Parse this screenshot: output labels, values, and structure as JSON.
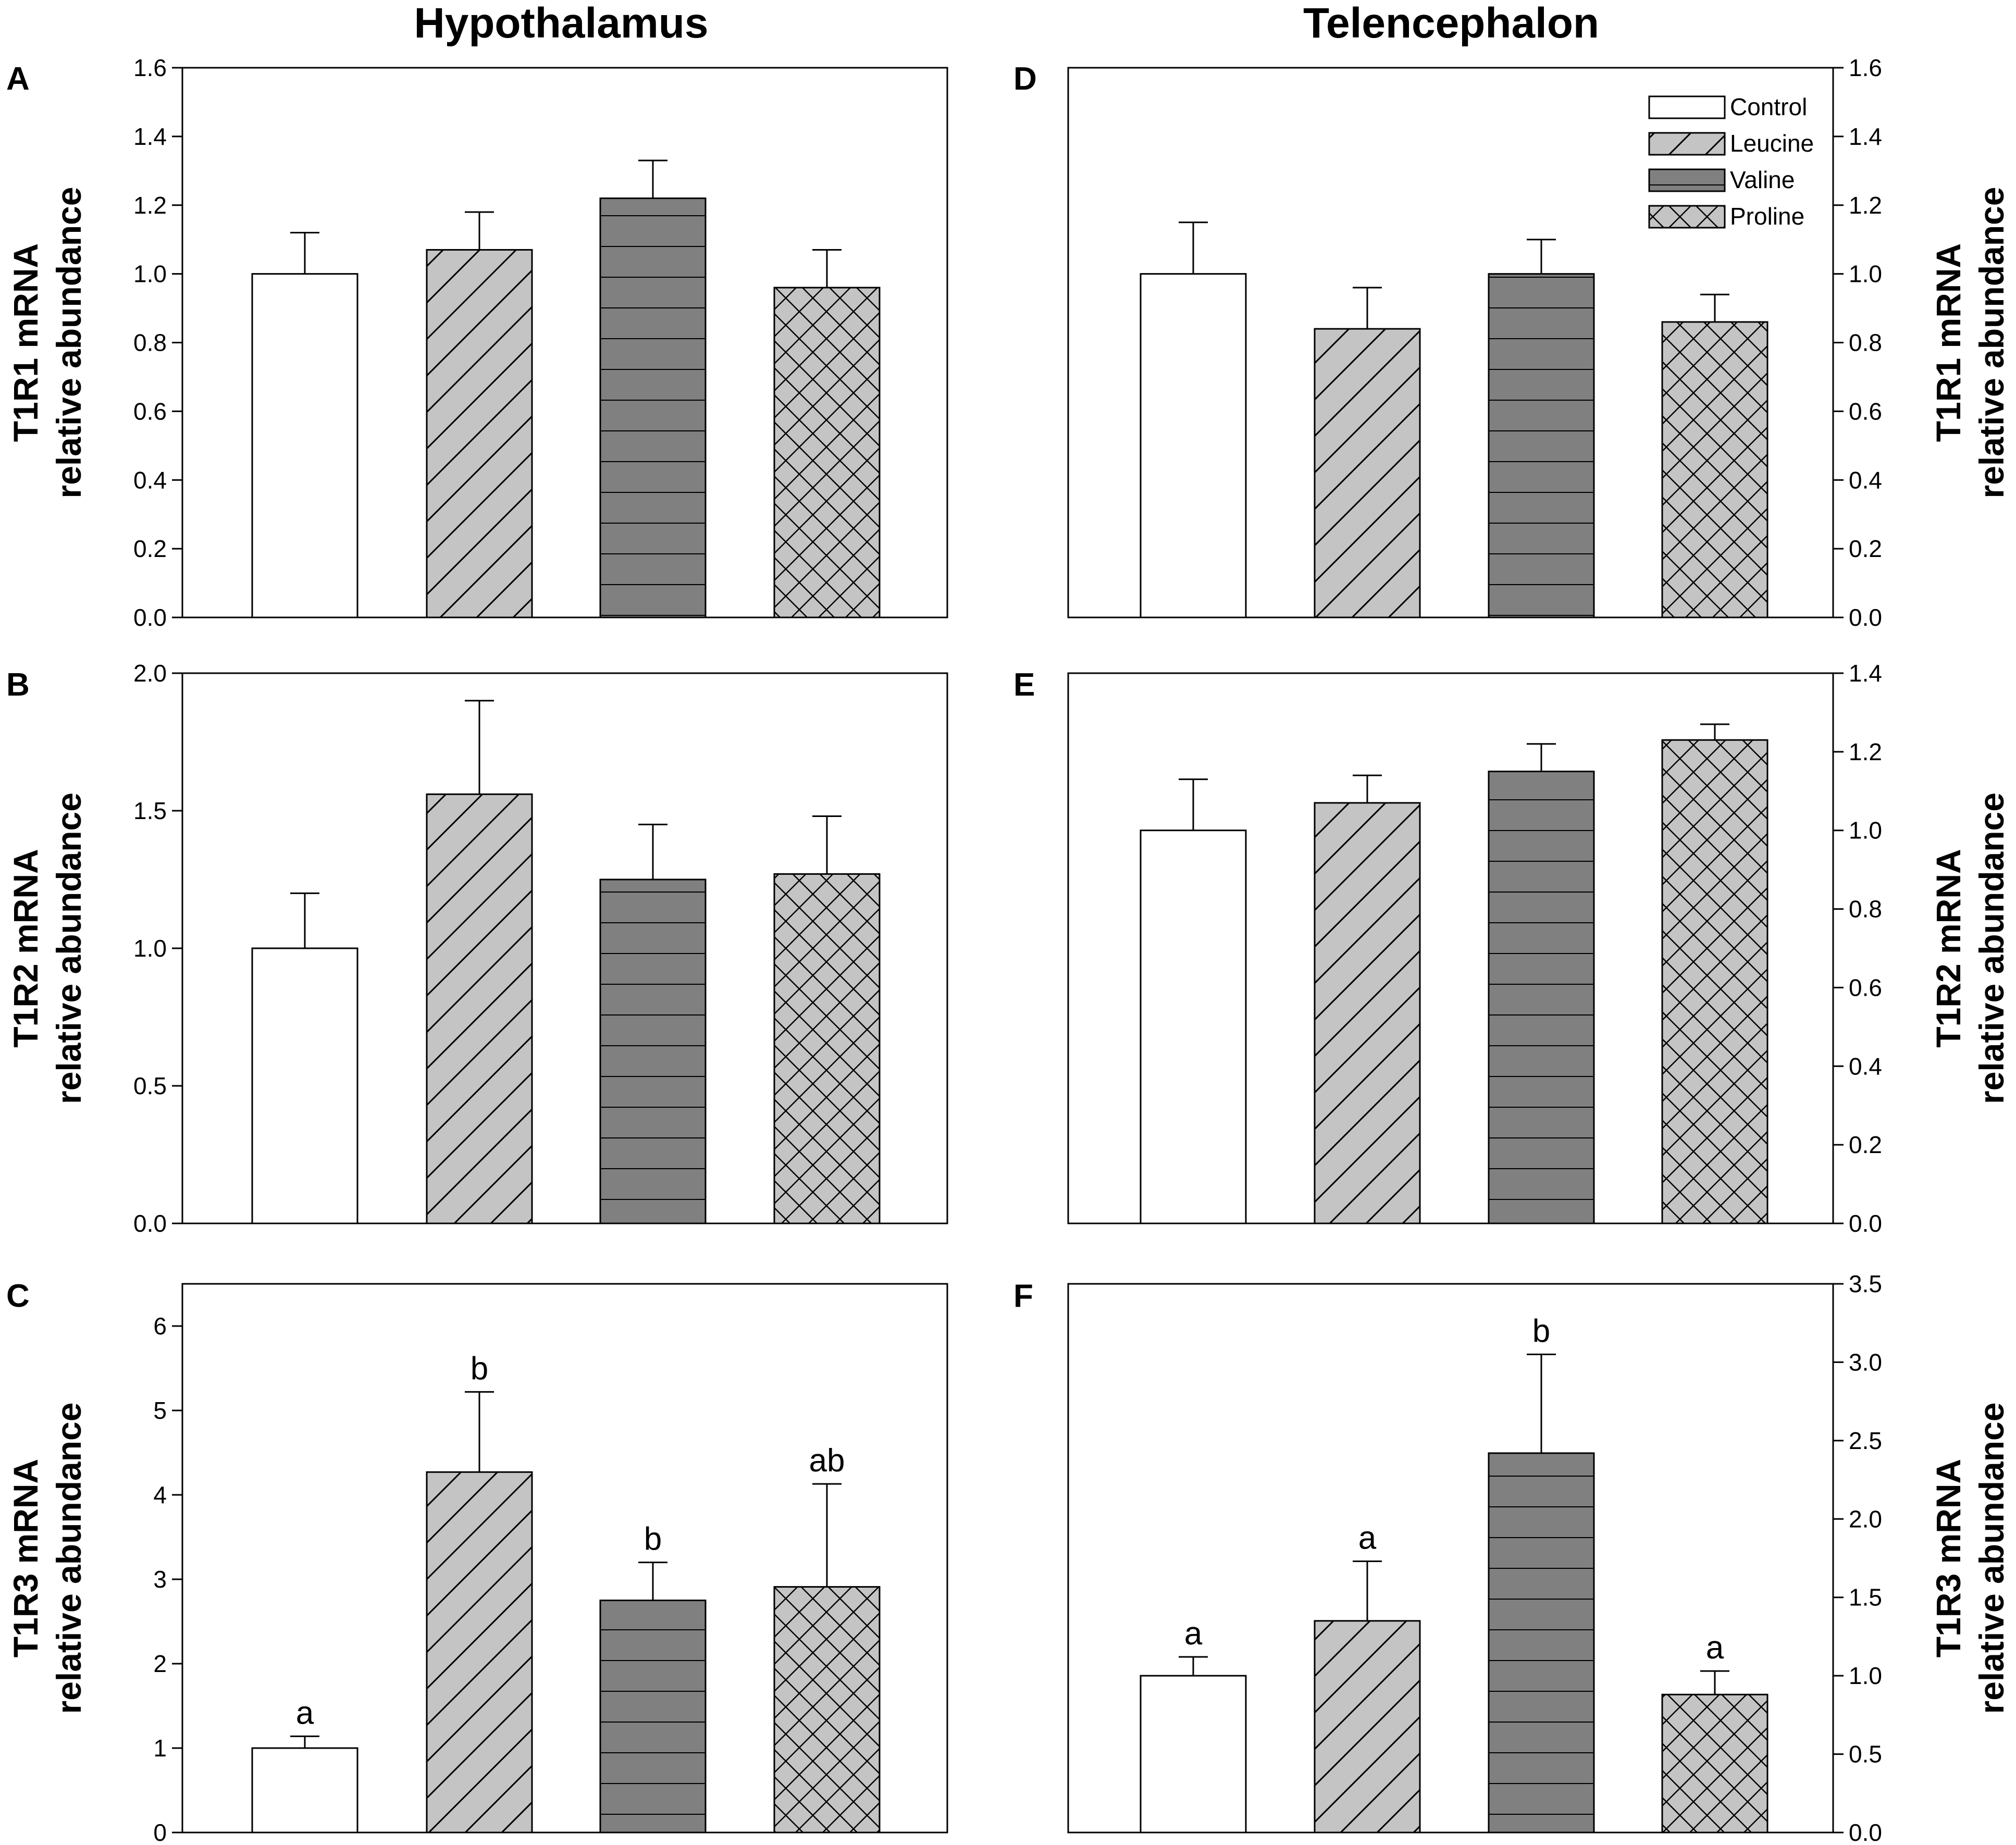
{
  "figure": {
    "column_titles": [
      "Hypothalamus",
      "Telencephalon"
    ]
  },
  "chart_data": [
    {
      "panel": "A",
      "type": "bar",
      "region": "Hypothalamus",
      "ylabel": [
        "T1R1 mRNA",
        "relative abundance"
      ],
      "yaxis_side": "left",
      "ylim": [
        0,
        1.6
      ],
      "yticks": [
        "0.0",
        "0.2",
        "0.4",
        "0.6",
        "0.8",
        "1.0",
        "1.2",
        "1.4",
        "1.6"
      ],
      "categories": [
        "Control",
        "Leucine",
        "Valine",
        "Proline"
      ],
      "values": [
        1.0,
        1.07,
        1.22,
        0.96
      ],
      "errors": [
        0.12,
        0.11,
        0.11,
        0.11
      ],
      "letters": [
        "",
        "",
        "",
        ""
      ]
    },
    {
      "panel": "B",
      "type": "bar",
      "region": "Hypothalamus",
      "ylabel": [
        "T1R2 mRNA",
        "relative abundance"
      ],
      "yaxis_side": "left",
      "ylim": [
        0,
        2.0
      ],
      "yticks": [
        "0.0",
        "0.5",
        "1.0",
        "1.5",
        "2.0"
      ],
      "categories": [
        "Control",
        "Leucine",
        "Valine",
        "Proline"
      ],
      "values": [
        1.0,
        1.56,
        1.25,
        1.27
      ],
      "errors": [
        0.2,
        0.34,
        0.2,
        0.21
      ],
      "letters": [
        "",
        "",
        "",
        ""
      ]
    },
    {
      "panel": "C",
      "type": "bar",
      "region": "Hypothalamus",
      "ylabel": [
        "T1R3 mRNA",
        "relative abundance"
      ],
      "yaxis_side": "left",
      "ylim": [
        0,
        6.5
      ],
      "yticks": [
        "0",
        "1",
        "2",
        "3",
        "4",
        "5",
        "6"
      ],
      "categories": [
        "Control",
        "Leucine",
        "Valine",
        "Proline"
      ],
      "values": [
        1.0,
        4.27,
        2.75,
        2.91
      ],
      "errors": [
        0.14,
        0.95,
        0.45,
        1.22
      ],
      "letters": [
        "a",
        "b",
        "b",
        "ab"
      ]
    },
    {
      "panel": "D",
      "type": "bar",
      "region": "Telencephalon",
      "ylabel": [
        "T1R1 mRNA",
        "relative abundance"
      ],
      "yaxis_side": "right",
      "ylim": [
        0,
        1.6
      ],
      "yticks": [
        "0.0",
        "0.2",
        "0.4",
        "0.6",
        "0.8",
        "1.0",
        "1.2",
        "1.4",
        "1.6"
      ],
      "categories": [
        "Control",
        "Leucine",
        "Valine",
        "Proline"
      ],
      "values": [
        1.0,
        0.84,
        1.0,
        0.86
      ],
      "errors": [
        0.15,
        0.12,
        0.1,
        0.08
      ],
      "letters": [
        "",
        "",
        "",
        ""
      ]
    },
    {
      "panel": "E",
      "type": "bar",
      "region": "Telencephalon",
      "ylabel": [
        "T1R2 mRNA",
        "relative abundance"
      ],
      "yaxis_side": "right",
      "ylim": [
        0,
        1.4
      ],
      "yticks": [
        "0.0",
        "0.2",
        "0.4",
        "0.6",
        "0.8",
        "1.0",
        "1.2",
        "1.4"
      ],
      "categories": [
        "Control",
        "Leucine",
        "Valine",
        "Proline"
      ],
      "values": [
        1.0,
        1.07,
        1.15,
        1.23
      ],
      "errors": [
        0.13,
        0.07,
        0.07,
        0.04
      ],
      "letters": [
        "",
        "",
        "",
        ""
      ]
    },
    {
      "panel": "F",
      "type": "bar",
      "region": "Telencephalon",
      "ylabel": [
        "T1R3 mRNA",
        "relative abundance"
      ],
      "yaxis_side": "right",
      "ylim": [
        0,
        3.5
      ],
      "yticks": [
        "0.0",
        "0.5",
        "1.0",
        "1.5",
        "2.0",
        "2.5",
        "3.0",
        "3.5"
      ],
      "categories": [
        "Control",
        "Leucine",
        "Valine",
        "Proline"
      ],
      "values": [
        1.0,
        1.35,
        2.42,
        0.88
      ],
      "errors": [
        0.12,
        0.38,
        0.63,
        0.15
      ],
      "letters": [
        "a",
        "a",
        "b",
        "a"
      ]
    }
  ],
  "legend": {
    "placement": "top-right of panel D",
    "items": [
      {
        "label": "Control",
        "pattern": "none",
        "fill": "#ffffff"
      },
      {
        "label": "Leucine",
        "pattern": "diagonal",
        "fill": "#c4c4c4"
      },
      {
        "label": "Valine",
        "pattern": "horizontal",
        "fill": "#808080"
      },
      {
        "label": "Proline",
        "pattern": "crosshatch",
        "fill": "#c4c4c4"
      }
    ]
  },
  "colors": {
    "control": "#ffffff",
    "leucine": "#c4c4c4",
    "valine": "#808080",
    "proline": "#c4c4c4",
    "stroke": "#000000"
  }
}
